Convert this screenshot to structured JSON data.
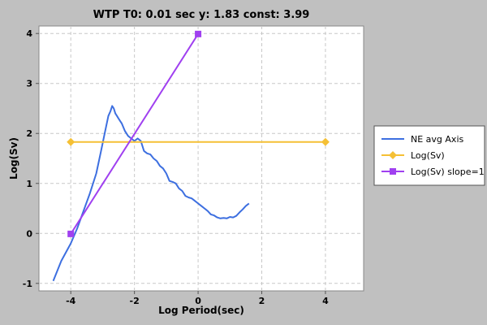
{
  "chart_data": {
    "type": "line",
    "title": "WTP T0: 0.01 sec  y: 1.83 const: 3.99",
    "xlabel": "Log Period(sec)",
    "ylabel": "Log(Sv)",
    "xlim": [
      -5,
      5.2
    ],
    "ylim": [
      -1.15,
      4.15
    ],
    "xticks": [
      -4,
      -2,
      0,
      2,
      4
    ],
    "yticks": [
      -1,
      0,
      1,
      2,
      3,
      4
    ],
    "grid": true,
    "legend_position": "right",
    "series": [
      {
        "name": "NE avg Axis",
        "color": "#3d6fe0",
        "marker": "none",
        "x": [
          -4.55,
          -4.3,
          -4.0,
          -3.8,
          -3.6,
          -3.4,
          -3.2,
          -3.05,
          -2.92,
          -2.82,
          -2.75,
          -2.7,
          -2.65,
          -2.6,
          -2.55,
          -2.5,
          -2.45,
          -2.4,
          -2.3,
          -2.2,
          -2.1,
          -2.0,
          -1.9,
          -1.8,
          -1.7,
          -1.6,
          -1.5,
          -1.4,
          -1.3,
          -1.2,
          -1.1,
          -1.0,
          -0.9,
          -0.8,
          -0.7,
          -0.6,
          -0.5,
          -0.4,
          -0.3,
          -0.2,
          -0.1,
          0.0,
          0.1,
          0.2,
          0.3,
          0.4,
          0.5,
          0.6,
          0.7,
          0.8,
          0.9,
          1.0,
          1.1,
          1.2,
          1.3,
          1.4,
          1.5,
          1.6
        ],
        "y": [
          -0.95,
          -0.55,
          -0.2,
          0.1,
          0.45,
          0.8,
          1.2,
          1.65,
          2.05,
          2.35,
          2.45,
          2.55,
          2.5,
          2.4,
          2.35,
          2.3,
          2.25,
          2.2,
          2.05,
          1.95,
          1.9,
          1.85,
          1.9,
          1.85,
          1.65,
          1.6,
          1.58,
          1.5,
          1.45,
          1.35,
          1.3,
          1.2,
          1.05,
          1.03,
          1.0,
          0.9,
          0.85,
          0.75,
          0.72,
          0.7,
          0.65,
          0.6,
          0.55,
          0.5,
          0.45,
          0.38,
          0.36,
          0.32,
          0.3,
          0.31,
          0.3,
          0.33,
          0.32,
          0.35,
          0.42,
          0.48,
          0.55,
          0.6
        ]
      },
      {
        "name": "Log(Sv)",
        "color": "#f5c035",
        "marker": "diamond",
        "x": [
          -4,
          4
        ],
        "y": [
          1.83,
          1.83
        ]
      },
      {
        "name": "Log(Sv) slope=1",
        "color": "#a040f0",
        "marker": "square",
        "x": [
          -4,
          0
        ],
        "y": [
          -0.01,
          3.99
        ]
      }
    ]
  }
}
